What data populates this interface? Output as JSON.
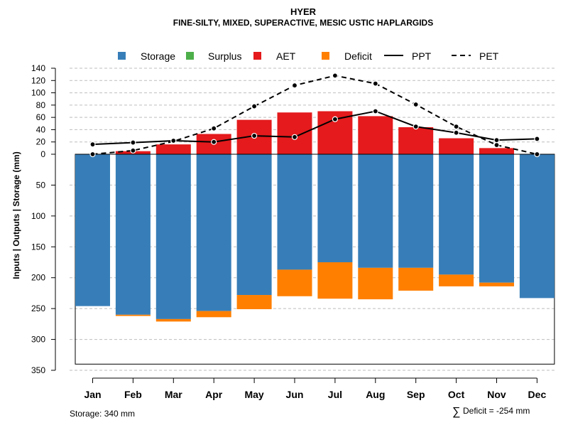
{
  "chart_data": {
    "type": "bar",
    "title": "HYER",
    "subtitle": "FINE-SILTY, MIXED, SUPERACTIVE, MESIC USTIC HAPLARGIDS",
    "ylabel": "Inputs | Outputs | Storage    (mm)",
    "categories": [
      "Jan",
      "Feb",
      "Mar",
      "Apr",
      "May",
      "Jun",
      "Jul",
      "Aug",
      "Sep",
      "Oct",
      "Nov",
      "Dec"
    ],
    "upper_ticks": [
      "0",
      "20",
      "40",
      "60",
      "80",
      "100",
      "120",
      "140"
    ],
    "upper_tick_values": [
      0,
      20,
      40,
      60,
      80,
      100,
      120,
      140
    ],
    "lower_ticks": [
      "50",
      "100",
      "150",
      "200",
      "250",
      "300",
      "350"
    ],
    "lower_tick_values": [
      50,
      100,
      150,
      200,
      250,
      300,
      350
    ],
    "upper_ylim": [
      0,
      140
    ],
    "lower_ylim": [
      0,
      350
    ],
    "storage_capacity": 340,
    "legend": [
      {
        "label": "Storage",
        "kind": "box",
        "color": "#377EB8"
      },
      {
        "label": "Surplus",
        "kind": "box",
        "color": "#4DAF4A"
      },
      {
        "label": "AET",
        "kind": "box",
        "color": "#E41A1C"
      },
      {
        "label": "Deficit",
        "kind": "box",
        "color": "#FF7F00"
      },
      {
        "label": "PPT",
        "kind": "solid"
      },
      {
        "label": "PET",
        "kind": "dashed"
      }
    ],
    "series": [
      {
        "name": "Storage",
        "values": [
          246,
          260,
          267,
          254,
          228,
          187,
          175,
          184,
          184,
          195,
          208,
          233
        ]
      },
      {
        "name": "Surplus",
        "values": [
          0,
          0,
          0,
          0,
          0,
          0,
          0,
          0,
          0,
          0,
          0,
          0
        ]
      },
      {
        "name": "AET",
        "values": [
          0,
          5,
          16,
          33,
          56,
          68,
          70,
          62,
          44,
          26,
          10,
          0
        ]
      },
      {
        "name": "Deficit",
        "values": [
          0,
          2,
          4,
          10,
          23,
          43,
          59,
          51,
          37,
          19,
          6,
          0
        ]
      },
      {
        "name": "PPT",
        "values": [
          16,
          19,
          22,
          20,
          30,
          28,
          57,
          70,
          45,
          35,
          23,
          25
        ]
      },
      {
        "name": "PET",
        "values": [
          0,
          6,
          21,
          42,
          78,
          112,
          128,
          115,
          81,
          45,
          15,
          0
        ]
      }
    ],
    "colors": {
      "storage": "#377EB8",
      "surplus": "#4DAF4A",
      "aet": "#E41A1C",
      "deficit": "#FF7F00",
      "grid": "#BEBEBE"
    }
  },
  "footer": {
    "storage_note": "Storage: 340 mm",
    "deficit_symbol": "∑",
    "deficit_note": "Deficit = -254 mm"
  }
}
